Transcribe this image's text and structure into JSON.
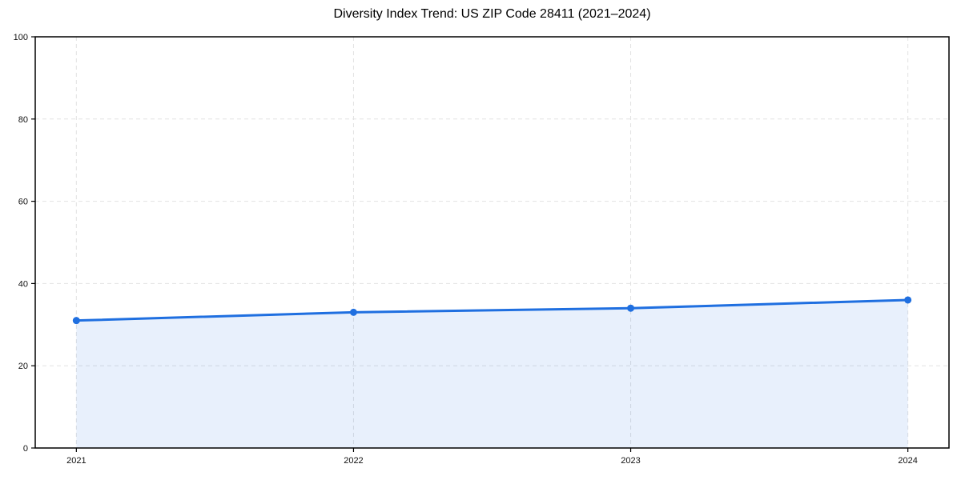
{
  "page": {
    "background_color": "#ffffff"
  },
  "chart_data": {
    "type": "line",
    "title": "Diversity Index Trend: US ZIP Code 28411 (2021–2024)",
    "categories": [
      "2021",
      "2022",
      "2023",
      "2024"
    ],
    "series": [
      {
        "name": "Diversity Index",
        "values": [
          31,
          33,
          34,
          36
        ]
      }
    ],
    "xlabel": "",
    "ylabel": "",
    "ylim": [
      0,
      100
    ],
    "yticks": [
      0,
      20,
      40,
      60,
      80,
      100
    ],
    "grid": "dashed-both-axes",
    "legend_position": "none",
    "line_color": "#1f6fe0",
    "marker_style": "filled-circle",
    "area_fill": true,
    "area_fill_color": "#1f6fe0",
    "area_fill_opacity": 0.1,
    "frame_color": "#000000",
    "gridline_color": "#e2e2e2",
    "tick_label_color": "#111111"
  }
}
